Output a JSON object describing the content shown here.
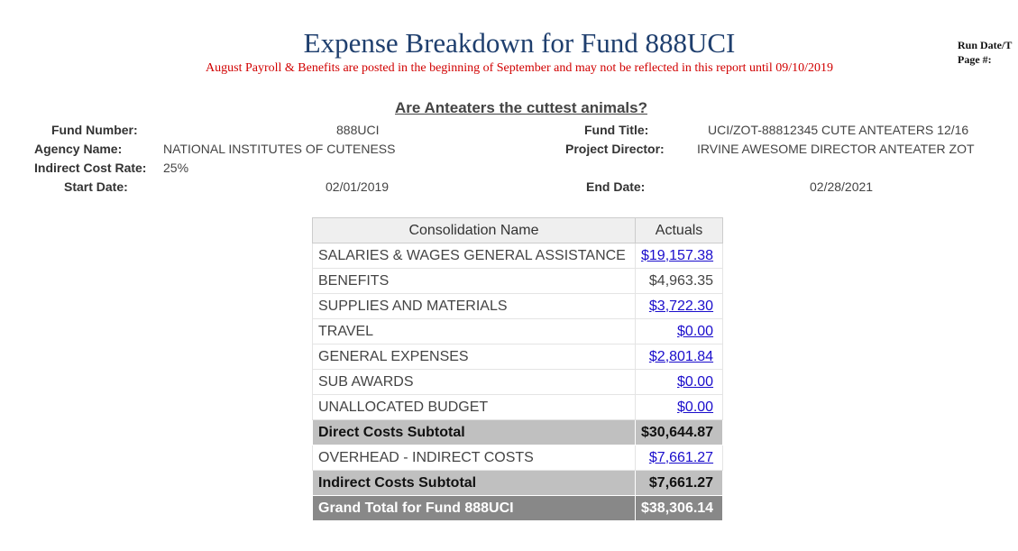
{
  "header": {
    "title": "Expense Breakdown for Fund 888UCI",
    "notice": "August Payroll & Benefits are posted in the beginning of September and may not be reflected in this report until 09/10/2019",
    "run_date_label": "Run Date/T",
    "page_label": "Page #:",
    "subtitle": "Are Anteaters the cuttest animals?"
  },
  "fund_info": {
    "fund_number_label": "Fund Number:",
    "fund_number": "888UCI",
    "fund_title_label": "Fund Title:",
    "fund_title": "UCI/ZOT-88812345 CUTE ANTEATERS 12/16",
    "agency_label": "Agency Name:",
    "agency": "NATIONAL INSTITUTES OF CUTENESS",
    "director_label": "Project Director:",
    "director": "IRVINE AWESOME DIRECTOR ANTEATER ZOT",
    "indirect_rate_label": "Indirect Cost Rate:",
    "indirect_rate": "25%",
    "start_label": "Start Date:",
    "start": "02/01/2019",
    "end_label": "End Date:",
    "end": "02/28/2021"
  },
  "table": {
    "headers": [
      "Consolidation Name",
      "Actuals"
    ],
    "rows": [
      {
        "name": "SALARIES & WAGES GENERAL ASSISTANCE",
        "amount": "$19,157.38"
      },
      {
        "name": "BENEFITS",
        "amount": "$4,963.35"
      },
      {
        "name": "SUPPLIES AND MATERIALS",
        "amount": "$3,722.30"
      },
      {
        "name": "TRAVEL",
        "amount": "$0.00"
      },
      {
        "name": "GENERAL EXPENSES",
        "amount": "$2,801.84"
      },
      {
        "name": "SUB AWARDS",
        "amount": "$0.00"
      },
      {
        "name": "UNALLOCATED BUDGET",
        "amount": "$0.00"
      }
    ],
    "direct_subtotal": {
      "name": "Direct Costs Subtotal",
      "amount": "$30,644.87"
    },
    "overhead": {
      "name": "OVERHEAD - INDIRECT COSTS",
      "amount": "$7,661.27"
    },
    "indirect_subtotal": {
      "name": "Indirect Costs Subtotal",
      "amount": "$7,661.27"
    },
    "grand_total": {
      "name": "Grand Total for Fund 888UCI",
      "amount": "$38,306.14"
    }
  }
}
